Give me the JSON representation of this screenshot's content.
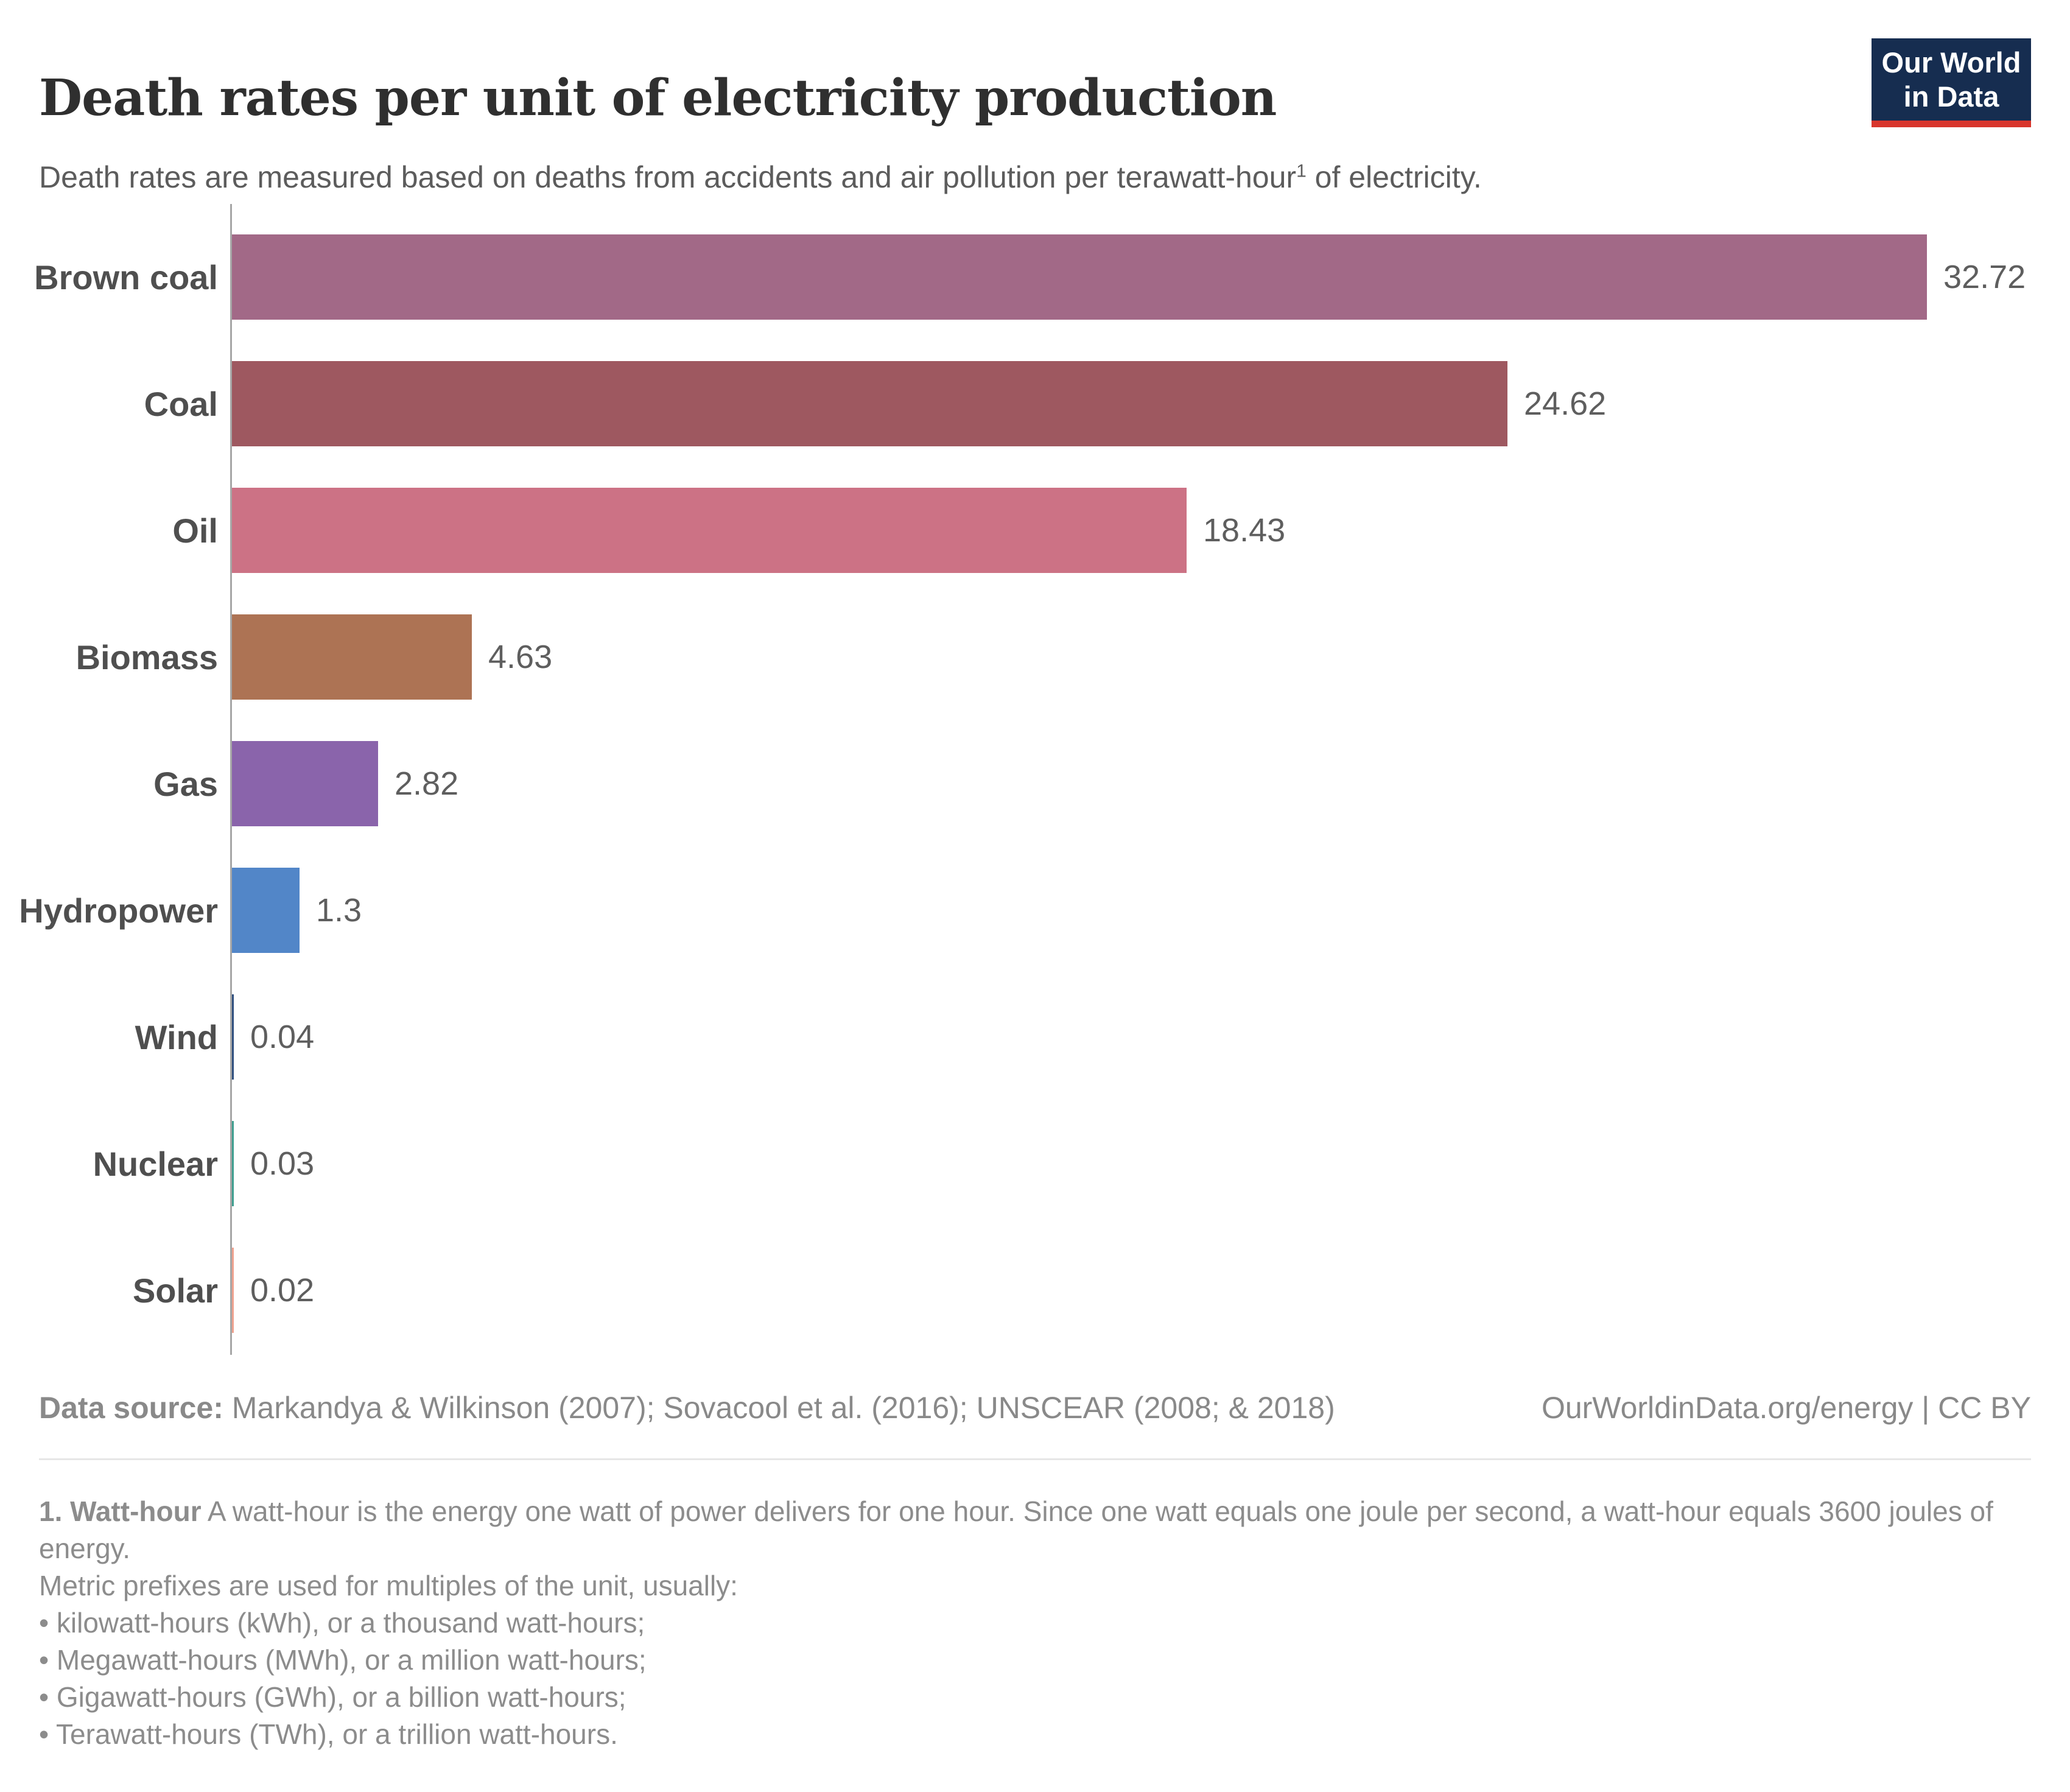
{
  "header": {
    "title": "Death rates per unit of electricity production",
    "subtitle_pre": "Death rates are measured based on deaths from accidents and air pollution per terawatt-hour",
    "subtitle_sup": "1",
    "subtitle_post": " of electricity."
  },
  "logo": {
    "line1": "Our World",
    "line2": "in Data",
    "background_color": "#162d50",
    "accent_color": "#d8352c"
  },
  "chart_data": {
    "type": "bar",
    "orientation": "horizontal",
    "categories": [
      "Brown coal",
      "Coal",
      "Oil",
      "Biomass",
      "Gas",
      "Hydropower",
      "Wind",
      "Nuclear",
      "Solar"
    ],
    "values": [
      32.72,
      24.62,
      18.43,
      4.63,
      2.82,
      1.3,
      0.04,
      0.03,
      0.02
    ],
    "value_labels": [
      "32.72",
      "24.62",
      "18.43",
      "4.63",
      "2.82",
      "1.3",
      "0.04",
      "0.03",
      "0.02"
    ],
    "bar_colors": [
      "#a26987",
      "#9e5860",
      "#cc7285",
      "#ad7354",
      "#8a64ab",
      "#5286c8",
      "#2e4e7e",
      "#3e9e8f",
      "#efa28f"
    ],
    "title": "Death rates per unit of electricity production",
    "xlabel": "",
    "ylabel": "",
    "xlim": [
      0,
      33.5
    ],
    "grid": false,
    "legend": false,
    "axis_color": "#a6a6a6"
  },
  "footer": {
    "source_label": "Data source:",
    "source_text": " Markandya & Wilkinson (2007); Sovacool et al. (2016); UNSCEAR (2008; & 2018)",
    "credit": "OurWorldinData.org/energy | CC BY"
  },
  "footnote": {
    "marker_bold": "1. Watt-hour",
    "text": " A watt-hour is the energy one watt of power delivers for one hour. Since one watt equals one joule per second, a watt-hour equals 3600 joules of energy.",
    "intro": "Metric prefixes are used for multiples of the unit, usually:",
    "bullet_glyph": "•",
    "bullets": [
      "kilowatt-hours (kWh), or a thousand watt-hours;",
      "Megawatt-hours (MWh), or a million watt-hours;",
      "Gigawatt-hours (GWh), or a billion watt-hours;",
      "Terawatt-hours (TWh), or a trillion watt-hours."
    ]
  }
}
